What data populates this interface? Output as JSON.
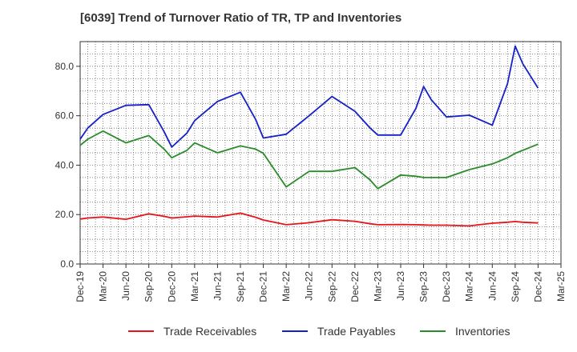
{
  "chart_data": {
    "type": "line",
    "title": "[6039]  Trend of Turnover Ratio of TR, TP and Inventories",
    "xlabel": "",
    "ylabel": "",
    "ylim": [
      0,
      90
    ],
    "yticks": [
      "0.0",
      "20.0",
      "40.0",
      "60.0",
      "80.0"
    ],
    "categories": [
      "Dec-19",
      "Mar-20",
      "Jun-20",
      "Sep-20",
      "Dec-20",
      "Mar-21",
      "Jun-21",
      "Sep-21",
      "Dec-21",
      "Mar-22",
      "Jun-22",
      "Sep-22",
      "Dec-22",
      "Mar-23",
      "Jun-23",
      "Sep-23",
      "Dec-23",
      "Mar-24",
      "Jun-24",
      "Sep-24",
      "Dec-24",
      "Mar-25"
    ],
    "x": [
      "Dec-19",
      "Jan-20",
      "Mar-20",
      "Jun-20",
      "Sep-20",
      "Nov-20",
      "Dec-20",
      "Feb-21",
      "Mar-21",
      "Jun-21",
      "Sep-21",
      "Nov-21",
      "Dec-21",
      "Mar-22",
      "Jun-22",
      "Sep-22",
      "Dec-22",
      "Feb-23",
      "Mar-23",
      "Jun-23",
      "Aug-23",
      "Sep-23",
      "Oct-23",
      "Dec-23",
      "Mar-24",
      "Jun-24",
      "Aug-24",
      "Sep-24",
      "Oct-24",
      "Dec-24"
    ],
    "grid": true,
    "legend_position": "bottom",
    "series": [
      {
        "name": "Trade Receivables",
        "color": "#e8141b",
        "values": [
          18.2,
          18.6,
          19.0,
          18.1,
          20.3,
          19.3,
          18.6,
          19.1,
          19.4,
          19.0,
          20.6,
          18.9,
          17.8,
          15.9,
          16.7,
          17.9,
          17.3,
          16.3,
          15.9,
          16.0,
          15.9,
          15.8,
          15.7,
          15.7,
          15.4,
          16.5,
          16.9,
          17.2,
          16.9,
          16.6
        ]
      },
      {
        "name": "Trade Payables",
        "color": "#1420c8",
        "values": [
          50.5,
          55.0,
          60.5,
          64.2,
          64.5,
          53.5,
          47.3,
          53.0,
          58.0,
          65.8,
          69.5,
          58.5,
          51.0,
          52.5,
          60.0,
          67.8,
          61.8,
          55.0,
          52.2,
          52.2,
          63.0,
          71.8,
          66.5,
          59.5,
          60.2,
          56.2,
          73.0,
          88.2,
          81.0,
          71.2
        ]
      },
      {
        "name": "Inventories",
        "color": "#2a8c2a",
        "values": [
          48.0,
          50.5,
          53.8,
          49.0,
          52.0,
          46.5,
          43.0,
          46.0,
          49.0,
          45.0,
          47.8,
          46.5,
          44.8,
          31.2,
          37.5,
          37.5,
          39.0,
          34.0,
          30.5,
          36.0,
          35.5,
          35.0,
          35.0,
          35.0,
          38.2,
          40.5,
          43.0,
          44.8,
          46.0,
          48.5
        ]
      }
    ]
  }
}
